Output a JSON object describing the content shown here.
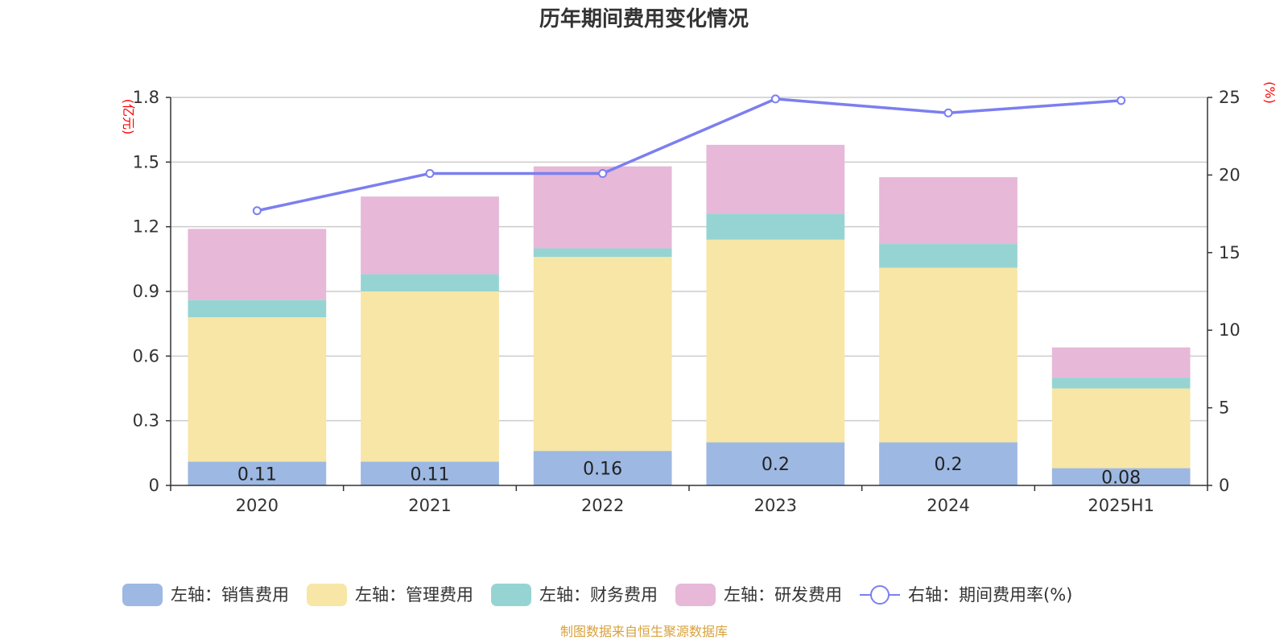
{
  "chart_data": {
    "type": "bar",
    "title": "历年期间费用变化情况",
    "categories": [
      "2020",
      "2021",
      "2022",
      "2023",
      "2024",
      "2025H1"
    ],
    "left_axis": {
      "unit_label": "(亿元)",
      "ylim": [
        0,
        1.8
      ],
      "ticks": [
        "0",
        "0.3",
        "0.6",
        "0.9",
        "1.2",
        "1.5",
        "1.8"
      ]
    },
    "right_axis": {
      "unit_label": "(%)",
      "ylim": [
        0,
        25
      ],
      "ticks": [
        "0",
        "5",
        "10",
        "15",
        "20",
        "25"
      ]
    },
    "series": [
      {
        "name": "左轴：销售费用",
        "type": "bar",
        "stack": true,
        "color": "#9db8e2",
        "values": [
          0.11,
          0.11,
          0.16,
          0.2,
          0.2,
          0.08
        ],
        "labels": [
          "0.11",
          "0.11",
          "0.16",
          "0.2",
          "0.2",
          "0.08"
        ]
      },
      {
        "name": "左轴：管理费用",
        "type": "bar",
        "stack": true,
        "color": "#f7e6a6",
        "values": [
          0.67,
          0.79,
          0.9,
          0.94,
          0.81,
          0.37
        ]
      },
      {
        "name": "左轴：财务费用",
        "type": "bar",
        "stack": true,
        "color": "#96d4d3",
        "values": [
          0.08,
          0.08,
          0.04,
          0.12,
          0.11,
          0.05
        ]
      },
      {
        "name": "左轴：研发费用",
        "type": "bar",
        "stack": true,
        "color": "#e7b8d8",
        "values": [
          0.33,
          0.36,
          0.38,
          0.32,
          0.31,
          0.14
        ]
      },
      {
        "name": "右轴：期间费用率(%)",
        "type": "line",
        "axis": "right",
        "color": "#7b7ff0",
        "values": [
          17.7,
          20.1,
          20.1,
          24.9,
          24.0,
          24.8
        ]
      }
    ],
    "grid": true,
    "legend_position": "bottom"
  },
  "source": "制图数据来自恒生聚源数据库"
}
